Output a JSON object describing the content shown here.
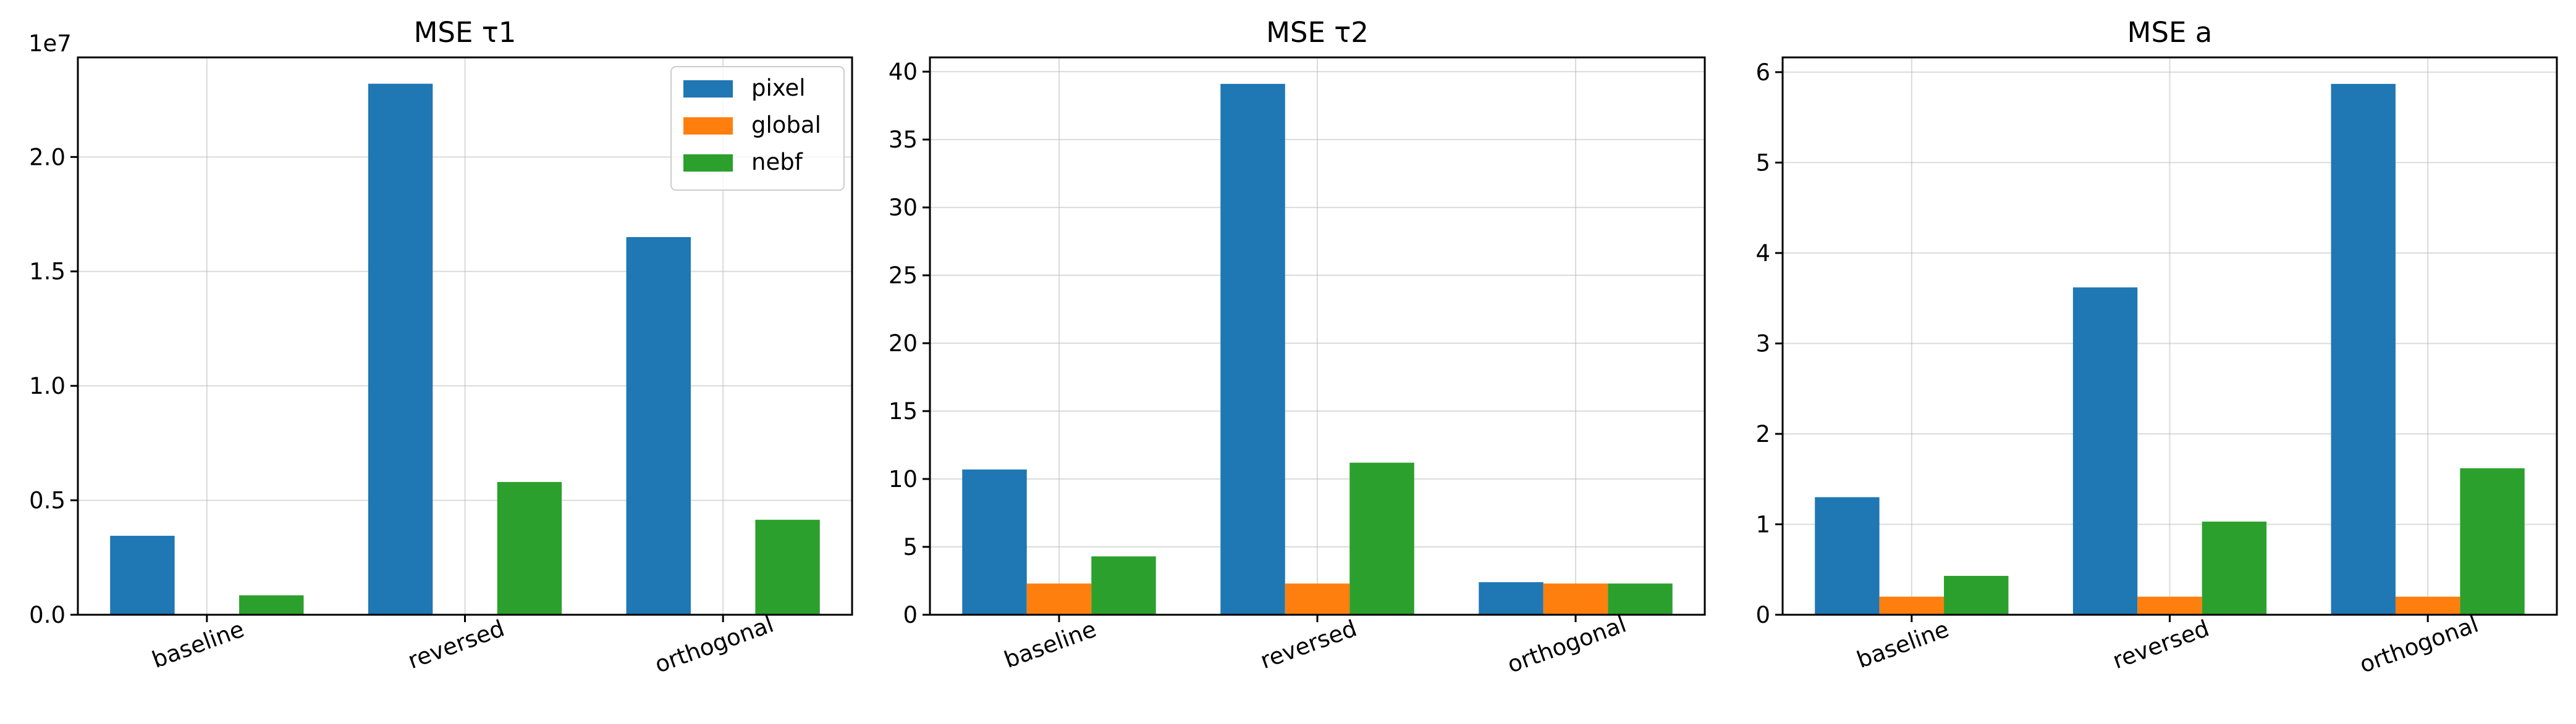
{
  "colors": {
    "pixel": "#1f77b4",
    "global": "#ff7f0e",
    "nebf": "#2ca02c",
    "grid": "#b0b0b0"
  },
  "chart_data": [
    {
      "type": "bar",
      "title": "MSE τ1",
      "categories": [
        "baseline",
        "reversed",
        "orthogonal"
      ],
      "series": [
        {
          "name": "pixel",
          "values": [
            3450000,
            23200000,
            16500000
          ]
        },
        {
          "name": "global",
          "values": [
            0,
            0,
            0
          ]
        },
        {
          "name": "nebf",
          "values": [
            850000,
            5800000,
            4150000
          ]
        }
      ],
      "ylim": [
        0,
        24350000
      ],
      "yticks": [
        0,
        5000000,
        10000000,
        15000000,
        20000000
      ],
      "ytick_labels": [
        "0.0",
        "0.5",
        "1.0",
        "1.5",
        "2.0"
      ],
      "offset_label": "1e7",
      "legend": "top-right",
      "grid": true
    },
    {
      "type": "bar",
      "title": "MSE τ2",
      "categories": [
        "baseline",
        "reversed",
        "orthogonal"
      ],
      "series": [
        {
          "name": "pixel",
          "values": [
            10.7,
            39.1,
            2.4
          ]
        },
        {
          "name": "global",
          "values": [
            2.3,
            2.3,
            2.3
          ]
        },
        {
          "name": "nebf",
          "values": [
            4.3,
            11.2,
            2.3
          ]
        }
      ],
      "ylim": [
        0,
        41.05
      ],
      "yticks": [
        0,
        5,
        10,
        15,
        20,
        25,
        30,
        35,
        40
      ],
      "ytick_labels": [
        "0",
        "5",
        "10",
        "15",
        "20",
        "25",
        "30",
        "35",
        "40"
      ],
      "grid": true
    },
    {
      "type": "bar",
      "title": "MSE a",
      "categories": [
        "baseline",
        "reversed",
        "orthogonal"
      ],
      "series": [
        {
          "name": "pixel",
          "values": [
            1.3,
            3.62,
            5.87
          ]
        },
        {
          "name": "global",
          "values": [
            0.2,
            0.2,
            0.2
          ]
        },
        {
          "name": "nebf",
          "values": [
            0.43,
            1.03,
            1.62
          ]
        }
      ],
      "ylim": [
        0,
        6.163
      ],
      "yticks": [
        0,
        1,
        2,
        3,
        4,
        5,
        6
      ],
      "ytick_labels": [
        "0",
        "1",
        "2",
        "3",
        "4",
        "5",
        "6"
      ],
      "grid": true
    }
  ]
}
